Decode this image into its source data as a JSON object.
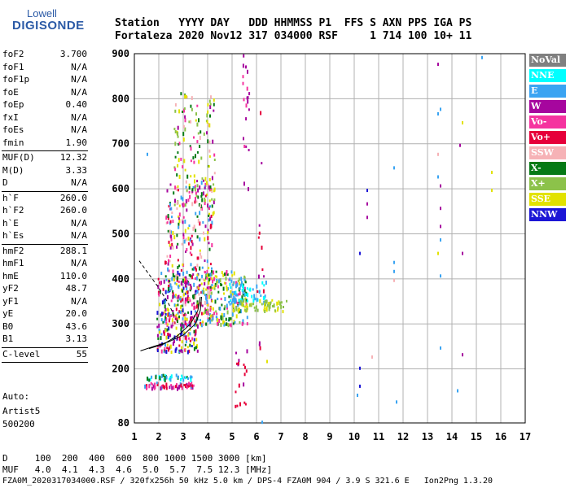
{
  "logo": {
    "top": "Lowell",
    "bottom": "DIGISONDE"
  },
  "header": {
    "line1": "Station   YYYY DAY   DDD HHMMSS P1  FFS S AXN PPS IGA PS",
    "line2": "Fortaleza 2020 Nov12 317 034000 RSF     1 714 100 10+ 11"
  },
  "params": [
    {
      "name": "foF2",
      "value": "3.700"
    },
    {
      "name": "foF1",
      "value": "N/A"
    },
    {
      "name": "foF1p",
      "value": "N/A"
    },
    {
      "name": "foE",
      "value": "N/A"
    },
    {
      "name": "foEp",
      "value": "0.40"
    },
    {
      "name": "fxI",
      "value": "N/A"
    },
    {
      "name": "foEs",
      "value": "N/A"
    },
    {
      "name": "fmin",
      "value": "1.90"
    },
    {
      "name": "MUF(D)",
      "value": "12.32"
    },
    {
      "name": "M(D)",
      "value": "3.33"
    },
    {
      "name": "D",
      "value": "N/A"
    },
    {
      "name": "h`F",
      "value": "260.0"
    },
    {
      "name": "h`F2",
      "value": "260.0"
    },
    {
      "name": "h`E",
      "value": "N/A"
    },
    {
      "name": "h`Es",
      "value": "N/A"
    },
    {
      "name": "hmF2",
      "value": "288.1"
    },
    {
      "name": "hmF1",
      "value": "N/A"
    },
    {
      "name": "hmE",
      "value": "110.0"
    },
    {
      "name": "yF2",
      "value": "48.7"
    },
    {
      "name": "yF1",
      "value": "N/A"
    },
    {
      "name": "yE",
      "value": "20.0"
    },
    {
      "name": "B0",
      "value": "43.6"
    },
    {
      "name": "B1",
      "value": "3.13"
    },
    {
      "name": "C-level",
      "value": "55"
    }
  ],
  "autoscaling": {
    "label": "Auto:",
    "program": "Artist5",
    "version": "500200"
  },
  "legend": [
    {
      "label": "NoVal",
      "color": "#808080",
      "text": "#ffffff"
    },
    {
      "label": "NNE",
      "color": "#00ffff",
      "text": "#ffffff"
    },
    {
      "label": "E",
      "color": "#3aa4f2",
      "text": "#ffffff"
    },
    {
      "label": "W",
      "color": "#a6069e",
      "text": "#ffffff"
    },
    {
      "label": "Vo-",
      "color": "#f5339f",
      "text": "#ffffff"
    },
    {
      "label": "Vo+",
      "color": "#e6003a",
      "text": "#ffffff"
    },
    {
      "label": "SSW",
      "color": "#f6b2b6",
      "text": "#ffffff"
    },
    {
      "label": "X-",
      "color": "#057a15",
      "text": "#ffffff"
    },
    {
      "label": "X+",
      "color": "#8cc24a",
      "text": "#ffffff"
    },
    {
      "label": "SSE",
      "color": "#e2e200",
      "text": "#ffffff"
    },
    {
      "label": "NNW",
      "color": "#1c16d6",
      "text": "#ffffff"
    }
  ],
  "footer": {
    "d_line": "D     100  200  400  600  800 1000 1500 3000 [km]",
    "muf_line": "MUF   4.0  4.1  4.3  4.6  5.0  5.7  7.5 12.3 [MHz]",
    "file_line": "FZA0M_2020317034000.RSF / 320fx256h 50 kHz 5.0 km / DPS-4 FZA0M 904 / 3.9 S 321.6 E   Ion2Png 1.3.20"
  },
  "chart_data": {
    "type": "scatter",
    "title": "",
    "xlabel": "",
    "ylabel": "",
    "xlim": [
      1,
      17
    ],
    "ylim": [
      80,
      900
    ],
    "x_ticks": [
      1,
      2,
      3,
      4,
      5,
      6,
      7,
      8,
      9,
      10,
      11,
      12,
      13,
      14,
      15,
      16,
      17
    ],
    "y_ticks": [
      80,
      200,
      300,
      400,
      500,
      600,
      700,
      800,
      900
    ],
    "grid": true,
    "clusters": [
      {
        "x": [
          1.9,
          3.6
        ],
        "y": [
          240,
          420
        ],
        "colors": [
          "#e6003a",
          "#f5339f",
          "#a6069e",
          "#057a15",
          "#e2e200",
          "#3aa4f2",
          "#1c16d6"
        ],
        "n": 260
      },
      {
        "x": [
          2.2,
          4.2
        ],
        "y": [
          300,
          620
        ],
        "colors": [
          "#a6069e",
          "#f5339f",
          "#e6003a",
          "#057a15",
          "#e2e200",
          "#3aa4f2",
          "#f6b2b6"
        ],
        "n": 320
      },
      {
        "x": [
          2.6,
          4.3
        ],
        "y": [
          550,
          820
        ],
        "colors": [
          "#a6069e",
          "#f5339f",
          "#057a15",
          "#e2e200",
          "#f6b2b6",
          "#8cc24a"
        ],
        "n": 140
      },
      {
        "x": [
          3.8,
          5.6
        ],
        "y": [
          300,
          420
        ],
        "colors": [
          "#e2e200",
          "#3aa4f2",
          "#057a15",
          "#8cc24a",
          "#f5339f"
        ],
        "n": 200
      },
      {
        "x": [
          4.8,
          6.4
        ],
        "y": [
          350,
          400
        ],
        "colors": [
          "#3aa4f2",
          "#00ffff"
        ],
        "n": 60
      },
      {
        "x": [
          5.0,
          7.2
        ],
        "y": [
          330,
          355
        ],
        "colors": [
          "#e2e200",
          "#8cc24a"
        ],
        "n": 70
      },
      {
        "x": [
          1.4,
          3.4
        ],
        "y": [
          160,
          172
        ],
        "colors": [
          "#e6003a",
          "#f5339f",
          "#a6069e",
          "#3aa4f2"
        ],
        "n": 60
      },
      {
        "x": [
          1.4,
          3.4
        ],
        "y": [
          178,
          190
        ],
        "colors": [
          "#3aa4f2",
          "#00ffff",
          "#057a15"
        ],
        "n": 40
      },
      {
        "x": [
          5.1,
          5.6
        ],
        "y": [
          120,
          260
        ],
        "colors": [
          "#a6069e",
          "#e6003a"
        ],
        "n": 18
      },
      {
        "x": [
          5.4,
          5.7
        ],
        "y": [
          600,
          900
        ],
        "colors": [
          "#a6069e",
          "#f5339f"
        ],
        "n": 22
      },
      {
        "x": [
          6.0,
          6.3
        ],
        "y": [
          250,
          800
        ],
        "colors": [
          "#a6069e",
          "#e6003a"
        ],
        "n": 14
      }
    ],
    "isolated_points": [
      {
        "x": 10.2,
        "y": 460,
        "color": "#1c16d6"
      },
      {
        "x": 10.5,
        "y": 540,
        "color": "#a6069e"
      },
      {
        "x": 10.5,
        "y": 570,
        "color": "#a6069e"
      },
      {
        "x": 10.5,
        "y": 600,
        "color": "#1c16d6"
      },
      {
        "x": 10.2,
        "y": 205,
        "color": "#1c16d6"
      },
      {
        "x": 10.2,
        "y": 165,
        "color": "#1c16d6"
      },
      {
        "x": 10.1,
        "y": 145,
        "color": "#3aa4f2"
      },
      {
        "x": 10.7,
        "y": 230,
        "color": "#f6b2b6"
      },
      {
        "x": 11.6,
        "y": 420,
        "color": "#3aa4f2"
      },
      {
        "x": 11.6,
        "y": 440,
        "color": "#3aa4f2"
      },
      {
        "x": 11.6,
        "y": 400,
        "color": "#f6b2b6"
      },
      {
        "x": 11.6,
        "y": 650,
        "color": "#3aa4f2"
      },
      {
        "x": 11.7,
        "y": 130,
        "color": "#3aa4f2"
      },
      {
        "x": 13.4,
        "y": 880,
        "color": "#a6069e"
      },
      {
        "x": 13.4,
        "y": 770,
        "color": "#3aa4f2"
      },
      {
        "x": 13.5,
        "y": 780,
        "color": "#3aa4f2"
      },
      {
        "x": 13.5,
        "y": 610,
        "color": "#a6069e"
      },
      {
        "x": 13.5,
        "y": 560,
        "color": "#a6069e"
      },
      {
        "x": 13.4,
        "y": 630,
        "color": "#3aa4f2"
      },
      {
        "x": 13.5,
        "y": 520,
        "color": "#a6069e"
      },
      {
        "x": 13.5,
        "y": 490,
        "color": "#3aa4f2"
      },
      {
        "x": 13.4,
        "y": 460,
        "color": "#e2e200"
      },
      {
        "x": 13.5,
        "y": 410,
        "color": "#3aa4f2"
      },
      {
        "x": 13.5,
        "y": 250,
        "color": "#3aa4f2"
      },
      {
        "x": 13.4,
        "y": 680,
        "color": "#f6b2b6"
      },
      {
        "x": 14.3,
        "y": 700,
        "color": "#a6069e"
      },
      {
        "x": 14.4,
        "y": 750,
        "color": "#e2e200"
      },
      {
        "x": 14.4,
        "y": 460,
        "color": "#a6069e"
      },
      {
        "x": 14.4,
        "y": 235,
        "color": "#a6069e"
      },
      {
        "x": 14.2,
        "y": 155,
        "color": "#3aa4f2"
      },
      {
        "x": 15.2,
        "y": 895,
        "color": "#3aa4f2"
      },
      {
        "x": 15.6,
        "y": 640,
        "color": "#e2e200"
      },
      {
        "x": 15.6,
        "y": 600,
        "color": "#e2e200"
      },
      {
        "x": 6.2,
        "y": 85,
        "color": "#3aa4f2"
      },
      {
        "x": 6.4,
        "y": 220,
        "color": "#e2e200"
      },
      {
        "x": 1.5,
        "y": 680,
        "color": "#3aa4f2"
      }
    ],
    "profile_curves": [
      {
        "style": "solid",
        "x": [
          1.25,
          1.8,
          2.4,
          3.0,
          3.5,
          3.7,
          3.75
        ],
        "y": [
          240,
          250,
          260,
          275,
          300,
          330,
          360
        ]
      },
      {
        "style": "solid",
        "x": [
          1.6,
          2.2,
          2.8,
          3.3,
          3.6,
          3.7
        ],
        "y": [
          245,
          255,
          275,
          300,
          330,
          360
        ]
      },
      {
        "style": "dashed",
        "x": [
          1.2,
          1.6,
          2.0,
          2.4,
          2.7
        ],
        "y": [
          440,
          410,
          380,
          345,
          310
        ]
      }
    ]
  }
}
